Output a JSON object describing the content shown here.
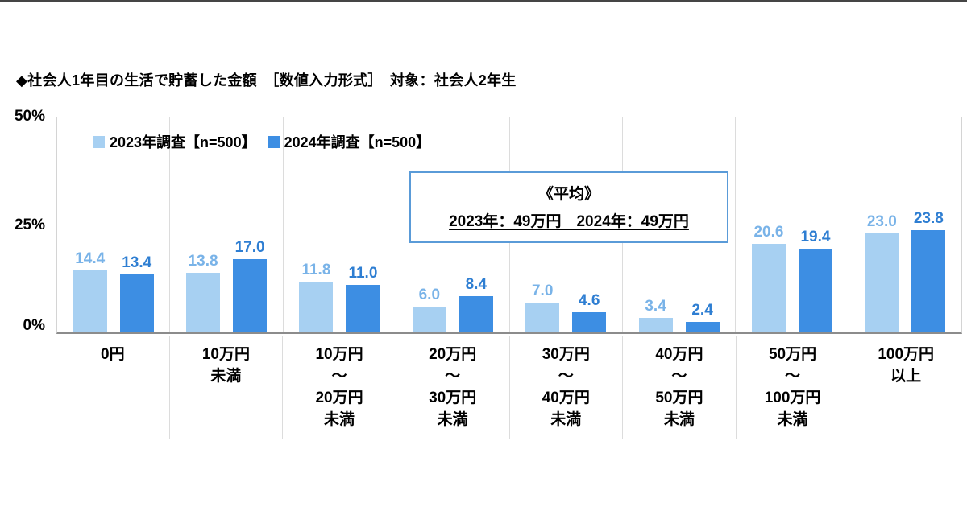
{
  "page": {
    "title": "◆社会人1年目の生活で貯蓄した金額　［数値入力形式］　対象：社会人2年生"
  },
  "annotation": {
    "heading": "《平均》",
    "body": "2023年：49万円　2024年：49万円"
  },
  "colors": {
    "series_2023": "#a7d0f2",
    "series_2024": "#3d8ee3",
    "label_2023": "#79b3e8",
    "label_2024": "#2e7ed2",
    "annotation_border": "#5a9bd8"
  },
  "chart_data": {
    "type": "bar",
    "title": "社会人1年目の生活で貯蓄した金額",
    "xlabel": "",
    "ylabel": "",
    "ylim": [
      0,
      50
    ],
    "yticks": [
      "50%",
      "25%",
      "0%"
    ],
    "grid": "vertical-category-separators",
    "legend_position": "top-left",
    "categories": [
      [
        "0円"
      ],
      [
        "10万円",
        "未満"
      ],
      [
        "10万円",
        "～",
        "20万円",
        "未満"
      ],
      [
        "20万円",
        "～",
        "30万円",
        "未満"
      ],
      [
        "30万円",
        "～",
        "40万円",
        "未満"
      ],
      [
        "40万円",
        "～",
        "50万円",
        "未満"
      ],
      [
        "50万円",
        "～",
        "100万円",
        "未満"
      ],
      [
        "100万円",
        "以上"
      ]
    ],
    "series": [
      {
        "name": "2023年調査【n=500】",
        "color": "#a7d0f2",
        "label_color": "#79b3e8",
        "values": [
          14.4,
          13.8,
          11.8,
          6.0,
          7.0,
          3.4,
          20.6,
          23.0
        ]
      },
      {
        "name": "2024年調査【n=500】",
        "color": "#3d8ee3",
        "label_color": "#2e7ed2",
        "values": [
          13.4,
          17.0,
          11.0,
          8.4,
          4.6,
          2.4,
          19.4,
          23.8
        ]
      }
    ]
  }
}
